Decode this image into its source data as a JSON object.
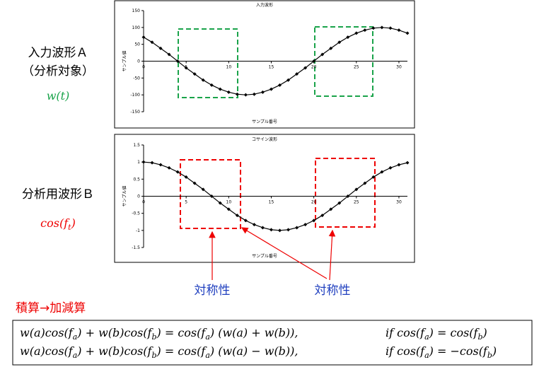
{
  "chart_data": [
    {
      "type": "line",
      "title": "入力波形",
      "x_label": "サンプル番号",
      "y_label": "サンプル値",
      "x": [
        0,
        1,
        2,
        3,
        4,
        5,
        6,
        7,
        8,
        9,
        10,
        11,
        12,
        13,
        14,
        15,
        16,
        17,
        18,
        19,
        20,
        21,
        22,
        23,
        24,
        25,
        26,
        27,
        28,
        29,
        30,
        31
      ],
      "values": [
        71,
        56,
        38,
        20,
        0,
        -20,
        -38,
        -56,
        -71,
        -83,
        -92,
        -98,
        -100,
        -98,
        -92,
        -83,
        -71,
        -56,
        -38,
        -20,
        0,
        20,
        38,
        56,
        71,
        83,
        92,
        98,
        100,
        98,
        92,
        83
      ],
      "color": "#000000",
      "xlim": [
        0,
        31
      ],
      "xticks": [
        0,
        5,
        10,
        15,
        20,
        25,
        30
      ],
      "ylim": [
        -150,
        150
      ],
      "yticks": [
        -150,
        -100,
        -50,
        0,
        50,
        100,
        150
      ]
    },
    {
      "type": "line",
      "title": "コサイン波形",
      "x_label": "サンプル番号",
      "y_label": "サンプル値",
      "x": [
        0,
        1,
        2,
        3,
        4,
        5,
        6,
        7,
        8,
        9,
        10,
        11,
        12,
        13,
        14,
        15,
        16,
        17,
        18,
        19,
        20,
        21,
        22,
        23,
        24,
        25,
        26,
        27,
        28,
        29,
        30,
        31
      ],
      "values": [
        1,
        0.98,
        0.92,
        0.83,
        0.71,
        0.56,
        0.38,
        0.2,
        0,
        -0.2,
        -0.38,
        -0.56,
        -0.71,
        -0.83,
        -0.92,
        -0.98,
        -1,
        -0.98,
        -0.92,
        -0.83,
        -0.71,
        -0.56,
        -0.38,
        -0.2,
        0,
        0.2,
        0.38,
        0.56,
        0.71,
        0.83,
        0.92,
        0.98
      ],
      "color": "#000000",
      "xlim": [
        0,
        31
      ],
      "xticks": [
        0,
        5,
        10,
        15,
        20,
        25,
        30
      ],
      "ylim": [
        -1.5,
        1.5
      ],
      "yticks": [
        -1.5,
        -1,
        -0.5,
        0,
        0.5,
        1,
        1.5
      ]
    }
  ],
  "labels": {
    "input_wave": "入力波形Ａ",
    "input_note": "（分析対象）",
    "input_symbol": [
      "w(t)"
    ],
    "analysis_wave": "分析用波形Ｂ",
    "analysis_symbol": [
      "cos(f",
      "t",
      ")"
    ],
    "symmetry_1": "対称性",
    "symmetry_2": "対称性",
    "heading": "積算→加減算"
  },
  "formula": {
    "lines": [
      {
        "equation": [
          "w(a)cos(f",
          "a",
          ") + w(b)cos(f",
          "b",
          ") = cos(f",
          "a",
          ") (w(a) + w(b)),"
        ],
        "condition": [
          "if cos(f",
          "a",
          ") = cos(f",
          "b",
          ")"
        ]
      },
      {
        "equation": [
          "w(a)cos(f",
          "a",
          ") + w(b)cos(f",
          "b",
          ") = cos(f",
          "a",
          ") (w(a) − w(b)),"
        ],
        "condition": [
          "if cos(f",
          "a",
          ") = −cos(f",
          "b",
          ")"
        ]
      }
    ]
  }
}
